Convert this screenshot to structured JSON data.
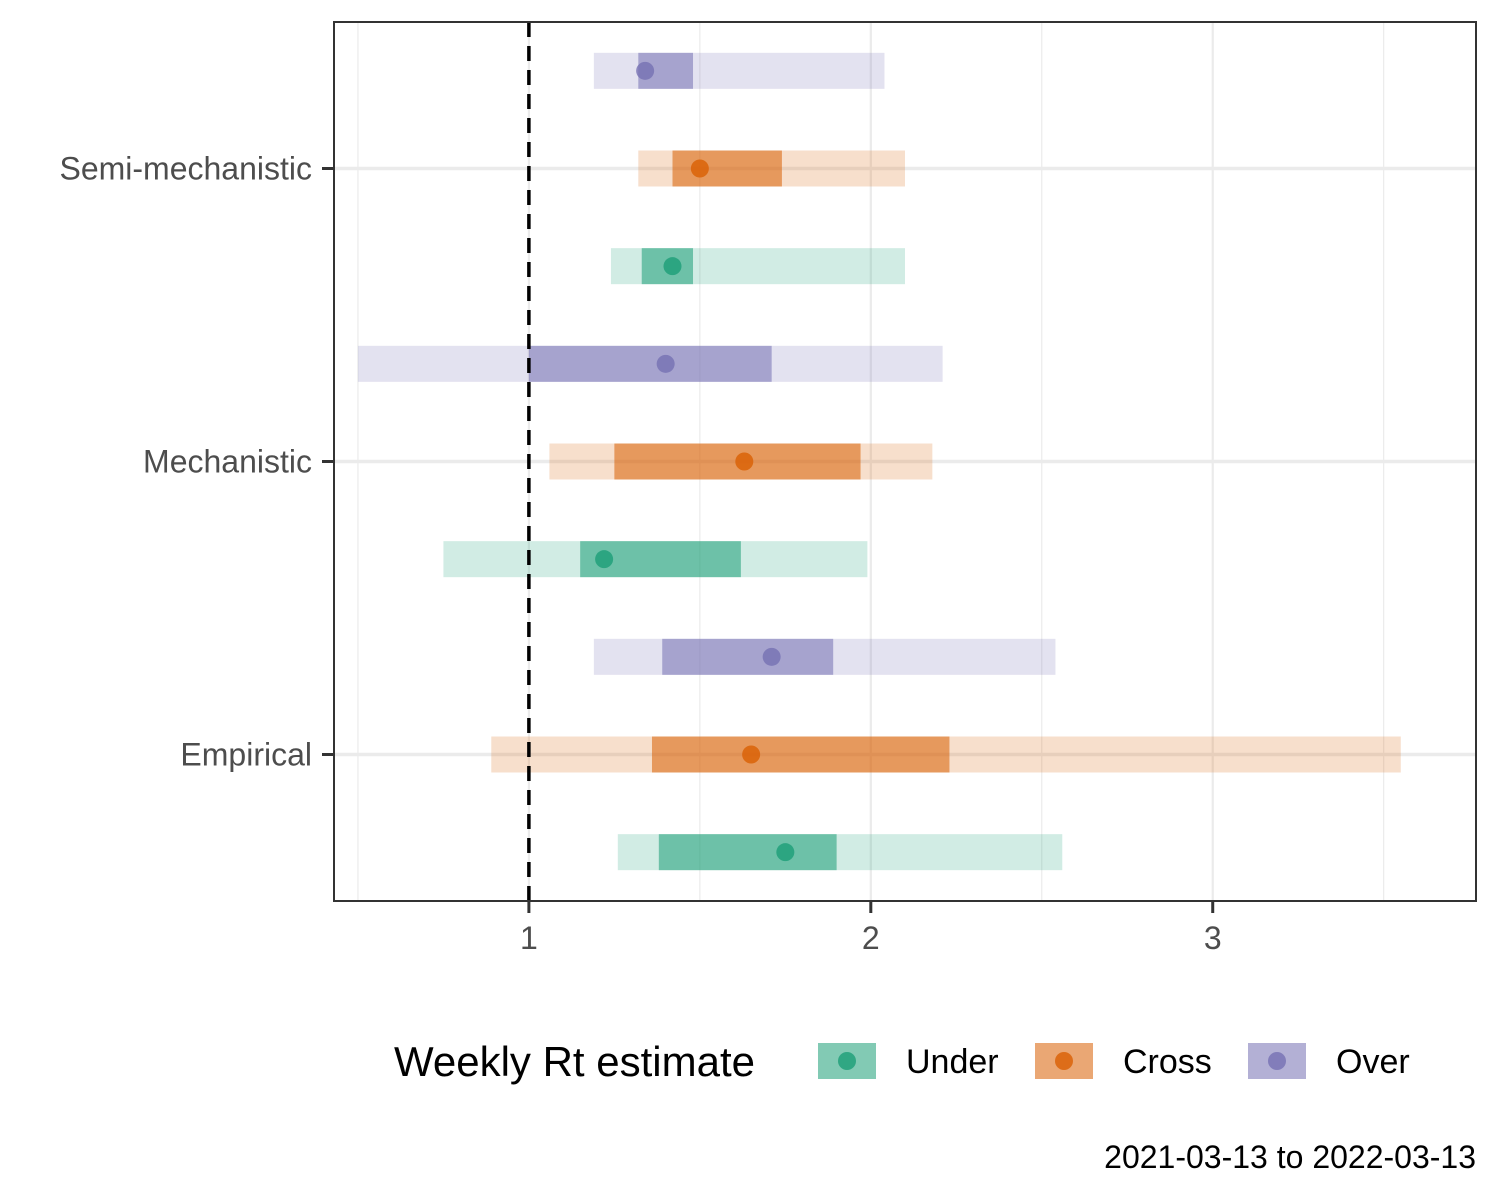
{
  "chart_data": {
    "type": "interval",
    "orientation": "horizontal",
    "categories": [
      "Empirical",
      "Mechanistic",
      "Semi-mechanistic"
    ],
    "xlim": [
      0.43,
      3.77
    ],
    "x_ticks": [
      1,
      2,
      3
    ],
    "reference_line": {
      "x": 1,
      "style": "dashed"
    },
    "grid": true,
    "legend": {
      "title": "Weekly Rt estimate",
      "position": "bottom"
    },
    "caption": "2021-03-13 to 2022-03-13",
    "series": [
      {
        "name": "Under",
        "color": "#1b9e77",
        "data": [
          {
            "category": "Empirical",
            "point": 1.75,
            "inner": [
              1.38,
              1.9
            ],
            "outer": [
              1.26,
              2.56
            ]
          },
          {
            "category": "Mechanistic",
            "point": 1.22,
            "inner": [
              1.15,
              1.62
            ],
            "outer": [
              0.75,
              1.99
            ]
          },
          {
            "category": "Semi-mechanistic",
            "point": 1.42,
            "inner": [
              1.33,
              1.48
            ],
            "outer": [
              1.24,
              2.1
            ]
          }
        ]
      },
      {
        "name": "Cross",
        "color": "#d95f02",
        "data": [
          {
            "category": "Empirical",
            "point": 1.65,
            "inner": [
              1.36,
              2.23
            ],
            "outer": [
              0.89,
              3.55
            ]
          },
          {
            "category": "Mechanistic",
            "point": 1.63,
            "inner": [
              1.25,
              1.97
            ],
            "outer": [
              1.06,
              2.18
            ]
          },
          {
            "category": "Semi-mechanistic",
            "point": 1.5,
            "inner": [
              1.42,
              1.74
            ],
            "outer": [
              1.32,
              2.1
            ]
          }
        ]
      },
      {
        "name": "Over",
        "color": "#7570b3",
        "data": [
          {
            "category": "Empirical",
            "point": 1.71,
            "inner": [
              1.39,
              1.89
            ],
            "outer": [
              1.19,
              2.54
            ]
          },
          {
            "category": "Mechanistic",
            "point": 1.4,
            "inner": [
              1.0,
              1.71
            ],
            "outer": [
              0.5,
              2.21
            ]
          },
          {
            "category": "Semi-mechanistic",
            "point": 1.34,
            "inner": [
              1.32,
              1.48
            ],
            "outer": [
              1.19,
              2.04
            ]
          }
        ]
      }
    ]
  }
}
